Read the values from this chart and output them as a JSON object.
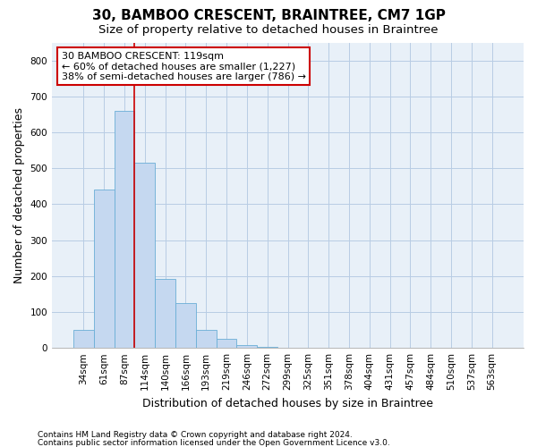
{
  "title1": "30, BAMBOO CRESCENT, BRAINTREE, CM7 1GP",
  "title2": "Size of property relative to detached houses in Braintree",
  "xlabel": "Distribution of detached houses by size in Braintree",
  "ylabel": "Number of detached properties",
  "footnote1": "Contains HM Land Registry data © Crown copyright and database right 2024.",
  "footnote2": "Contains public sector information licensed under the Open Government Licence v3.0.",
  "categories": [
    "34sqm",
    "61sqm",
    "87sqm",
    "114sqm",
    "140sqm",
    "166sqm",
    "193sqm",
    "219sqm",
    "246sqm",
    "272sqm",
    "299sqm",
    "325sqm",
    "351sqm",
    "378sqm",
    "404sqm",
    "431sqm",
    "457sqm",
    "484sqm",
    "510sqm",
    "537sqm",
    "563sqm"
  ],
  "values": [
    50,
    440,
    660,
    515,
    193,
    125,
    50,
    25,
    8,
    2,
    1,
    0,
    1,
    0,
    0,
    0,
    0,
    0,
    0,
    0,
    0
  ],
  "bar_color": "#c5d8f0",
  "bar_edge_color": "#6aaed6",
  "property_line_col_idx": 3,
  "property_line_color": "#cc0000",
  "annotation_text": "30 BAMBOO CRESCENT: 119sqm\n← 60% of detached houses are smaller (1,227)\n38% of semi-detached houses are larger (786) →",
  "annotation_box_color": "#ffffff",
  "annotation_box_edge": "#cc0000",
  "ylim": [
    0,
    850
  ],
  "yticks": [
    0,
    100,
    200,
    300,
    400,
    500,
    600,
    700,
    800
  ],
  "background_color": "#ffffff",
  "plot_bg_color": "#e8f0f8",
  "grid_color": "#b8cce4",
  "title1_fontsize": 11,
  "title2_fontsize": 9.5,
  "axis_label_fontsize": 9,
  "tick_fontsize": 7.5,
  "annotation_fontsize": 8,
  "footnote_fontsize": 6.5
}
